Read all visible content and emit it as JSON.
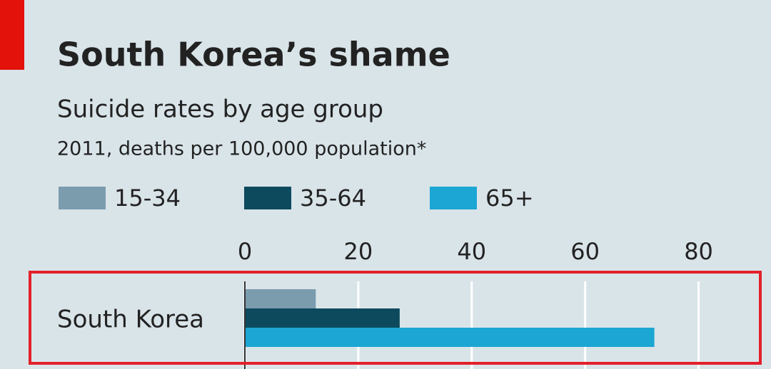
{
  "chart_data": {
    "type": "bar",
    "orientation": "horizontal",
    "title": "South Korea’s shame",
    "subtitle": "Suicide rates by age group",
    "note": "2011, deaths per 100,000 population*",
    "categories": [
      "South Korea"
    ],
    "series": [
      {
        "name": "15-34",
        "color": "#7b9cad",
        "values": [
          12.5
        ]
      },
      {
        "name": "35-64",
        "color": "#0d4a5e",
        "values": [
          27.3
        ]
      },
      {
        "name": "65+",
        "color": "#1ba6d3",
        "values": [
          72.2
        ]
      }
    ],
    "xlim": [
      0,
      90
    ],
    "xticks": [
      0,
      20,
      40,
      60,
      80
    ],
    "grid": true
  }
}
